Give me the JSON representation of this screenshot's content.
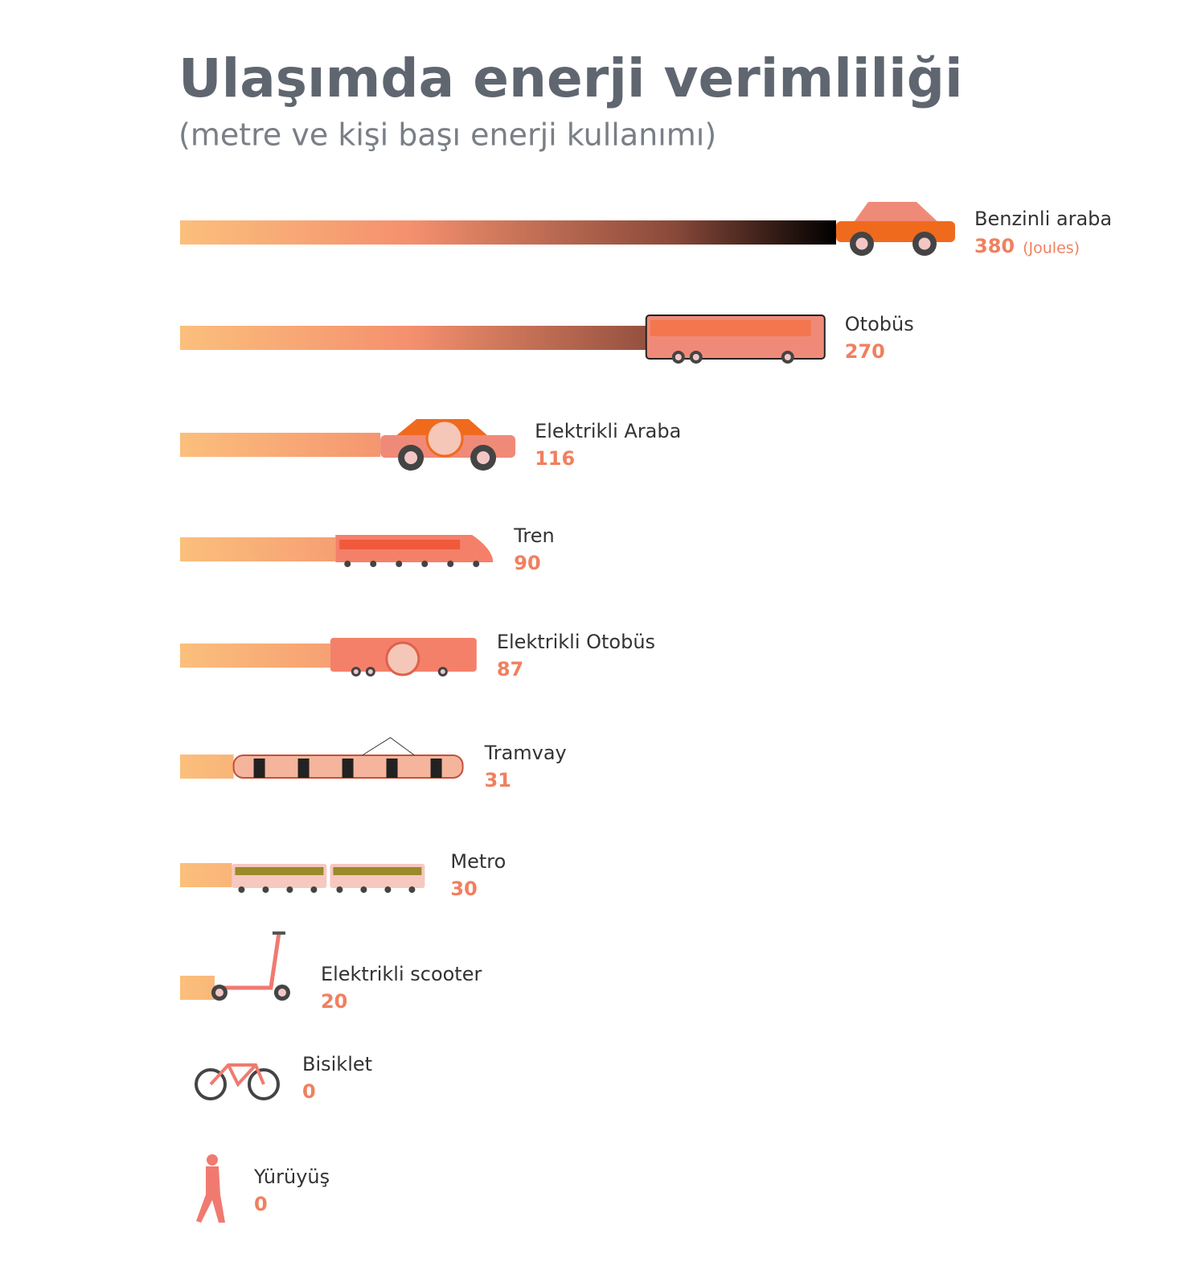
{
  "chart_data": {
    "type": "bar",
    "title": "Ulaşımda enerji verimliliği",
    "subtitle": "(metre ve kişi başı enerji kullanımı)",
    "unit_label": "(Joules)",
    "categories": [
      "Benzinli araba",
      "Otobüs",
      "Elektrikli Araba",
      "Tren",
      "Elektrikli Otobüs",
      "Tramvay",
      "Metro",
      "Elektrikli scooter",
      "Bisiklet",
      "Yürüyüş"
    ],
    "values": [
      380,
      270,
      116,
      90,
      87,
      31,
      30,
      20,
      0,
      0
    ],
    "xlim": [
      0,
      380
    ],
    "colors": [
      "#fbbf7c",
      "#f4906e",
      "#8a4a3a",
      "#000000"
    ]
  }
}
